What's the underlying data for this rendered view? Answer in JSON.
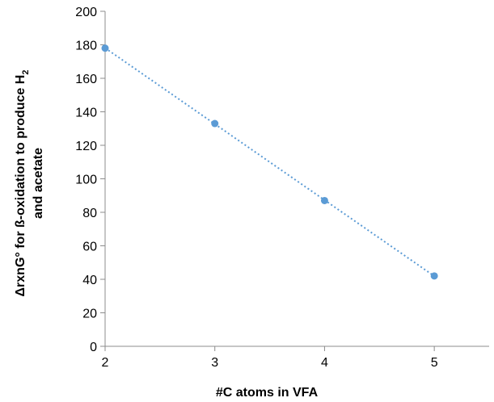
{
  "chart_data": {
    "type": "scatter",
    "title": "",
    "xlabel": "#C atoms in VFA",
    "ylabel_line1": "ΔrxnG° for ß-oxidation to produce H",
    "ylabel_subscript": "2",
    "ylabel_line2": "and acetate",
    "xlim": [
      2,
      5.5
    ],
    "ylim": [
      0,
      200
    ],
    "x_ticks": [
      2,
      3,
      4,
      5
    ],
    "y_ticks": [
      0,
      20,
      40,
      60,
      80,
      100,
      120,
      140,
      160,
      180,
      200
    ],
    "series": [
      {
        "x": [
          2,
          3,
          4,
          5
        ],
        "y": [
          178,
          133,
          87,
          42
        ],
        "color": "#5b9bd5",
        "trendline": "linear dotted"
      }
    ],
    "grid": false,
    "legend": "none"
  }
}
